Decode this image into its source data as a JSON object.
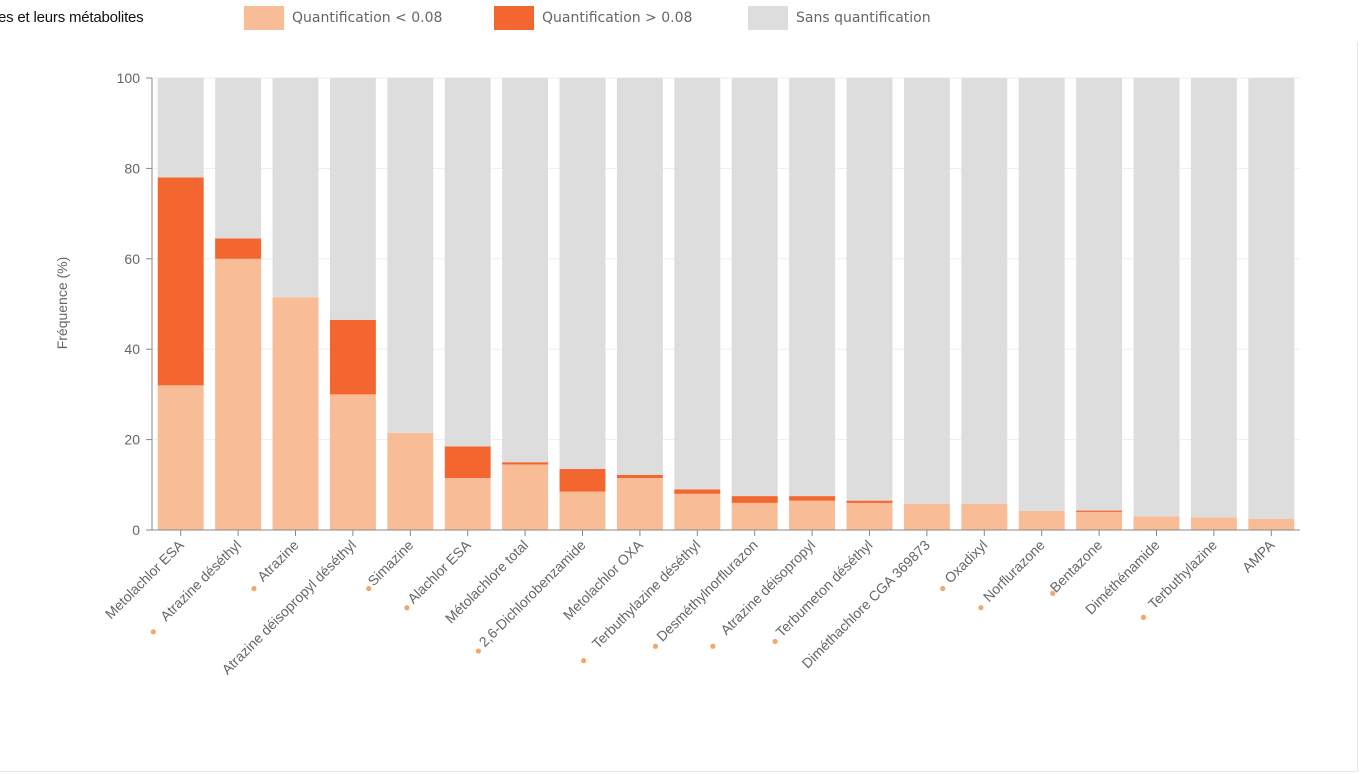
{
  "page": {
    "title": "es et leurs métabolites"
  },
  "colors": {
    "low": "#f8bd96",
    "high": "#f4662f",
    "none": "#dddddd",
    "marker": "#f5a66b",
    "axis": "#666666",
    "grid": "#eeeeee"
  },
  "chart_data": {
    "type": "bar",
    "stacked": true,
    "title": "",
    "xlabel": "",
    "ylabel": "Fréquence (%)",
    "ylim": [
      0,
      100
    ],
    "yticks": [
      0,
      20,
      40,
      60,
      80,
      100
    ],
    "grid": true,
    "legend_position": "top",
    "categories": [
      "Metolachlor ESA",
      "Atrazine déséthyl",
      "Atrazine",
      "Atrazine déisopropyl déséthyl",
      "Simazine",
      "Alachlor ESA",
      "Métolachlore total",
      "2,6-Dichlorobenzamide",
      "Metolachlor OXA",
      "Terbuthylazine déséthyl",
      "Desméthylnorflurazon",
      "Atrazine déisopropyl",
      "Terbumeton déséthyl",
      "Diméthachlore CGA 369873",
      "Oxadixyl",
      "Norflurazone",
      "Bentazone",
      "Diméthénamide",
      "Terbuthylazine",
      "AMPA"
    ],
    "marked": [
      false,
      true,
      true,
      false,
      true,
      true,
      false,
      true,
      false,
      true,
      true,
      true,
      true,
      false,
      true,
      true,
      true,
      false,
      true,
      false
    ],
    "series": [
      {
        "name": "Quantification < 0.08",
        "color": "#f8bd96",
        "values": [
          32,
          60,
          51.5,
          30,
          21.5,
          11.5,
          14.5,
          8.5,
          11.5,
          8,
          6,
          6.5,
          6,
          5.8,
          5.8,
          4.2,
          4,
          3,
          2.8,
          2.5
        ]
      },
      {
        "name": "Quantification > 0.08",
        "color": "#f4662f",
        "values": [
          46,
          4.5,
          0,
          16.5,
          0,
          7,
          0.5,
          5,
          0.7,
          1,
          1.5,
          1,
          0.5,
          0,
          0,
          0,
          0.3,
          0,
          0,
          0
        ]
      },
      {
        "name": "Sans quantification",
        "color": "#dddddd",
        "values": [
          22,
          35.5,
          48.5,
          53.5,
          78.5,
          81.5,
          85,
          86.5,
          87.8,
          91,
          92.5,
          92.5,
          93.5,
          94.2,
          94.2,
          95.8,
          95.7,
          97,
          97.2,
          97.5
        ]
      }
    ]
  }
}
